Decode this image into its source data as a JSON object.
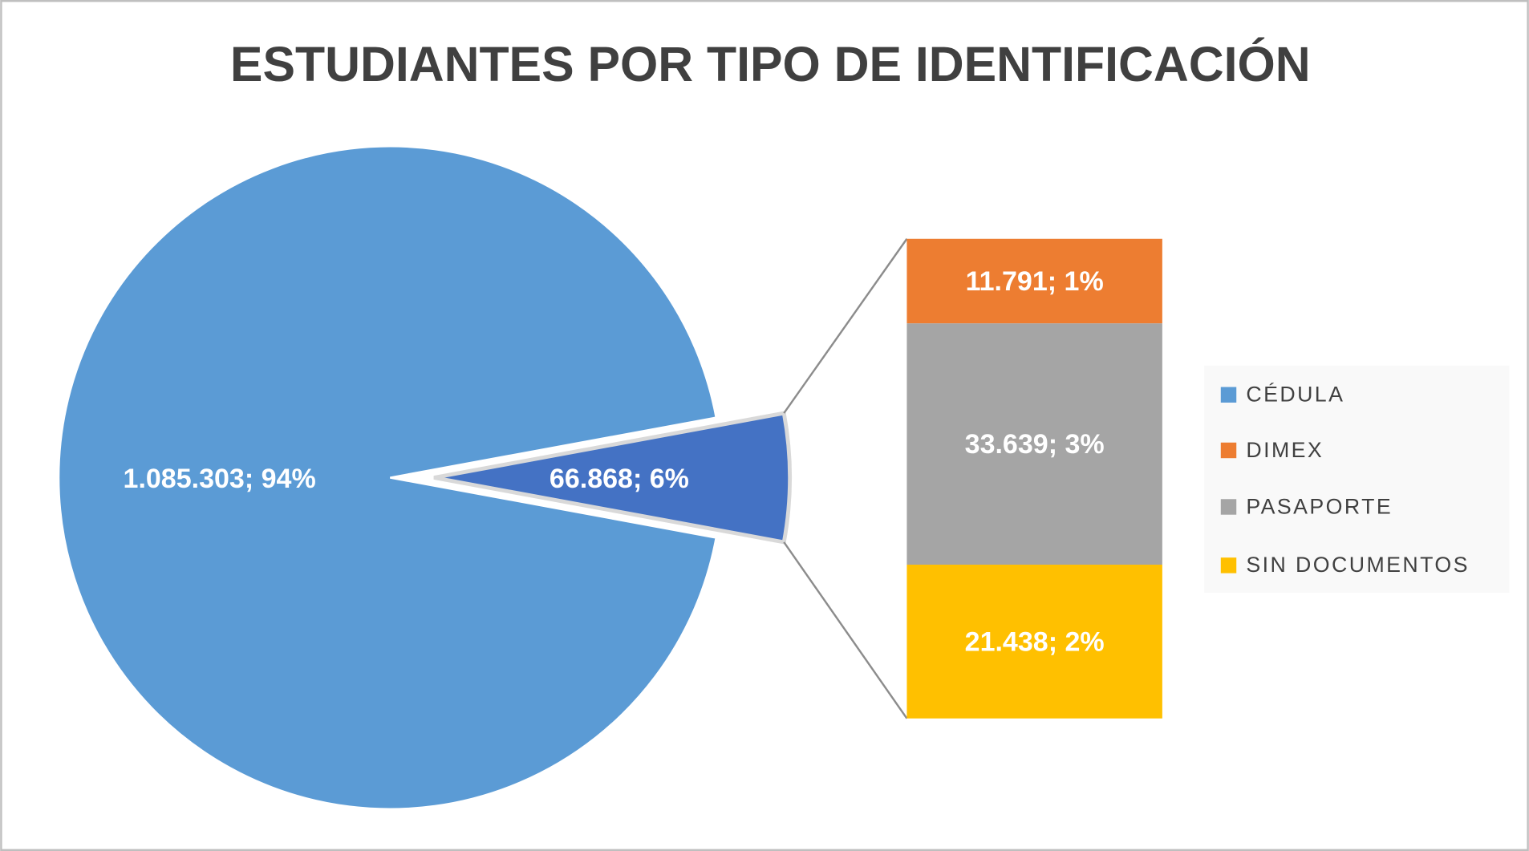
{
  "chart_data": {
    "type": "pie-of-bar",
    "title": "ESTUDIANTES POR TIPO DE IDENTIFICACIÓN",
    "categories": [
      "CÉDULA",
      "DIMEX",
      "PASAPORTE",
      "SIN DOCUMENTOS"
    ],
    "values": [
      1085303,
      11791,
      33639,
      21438
    ],
    "value_labels": [
      "1.085.303; 94%",
      "11.791; 1%",
      "33.639; 3%",
      "21.438; 2%"
    ],
    "colors": [
      "#5b9bd5",
      "#ed7d31",
      "#a5a5a5",
      "#ffc000"
    ],
    "other_value": 66868,
    "other_label": "66.868; 6%",
    "other_color": "#4472c4",
    "legend": "right"
  }
}
